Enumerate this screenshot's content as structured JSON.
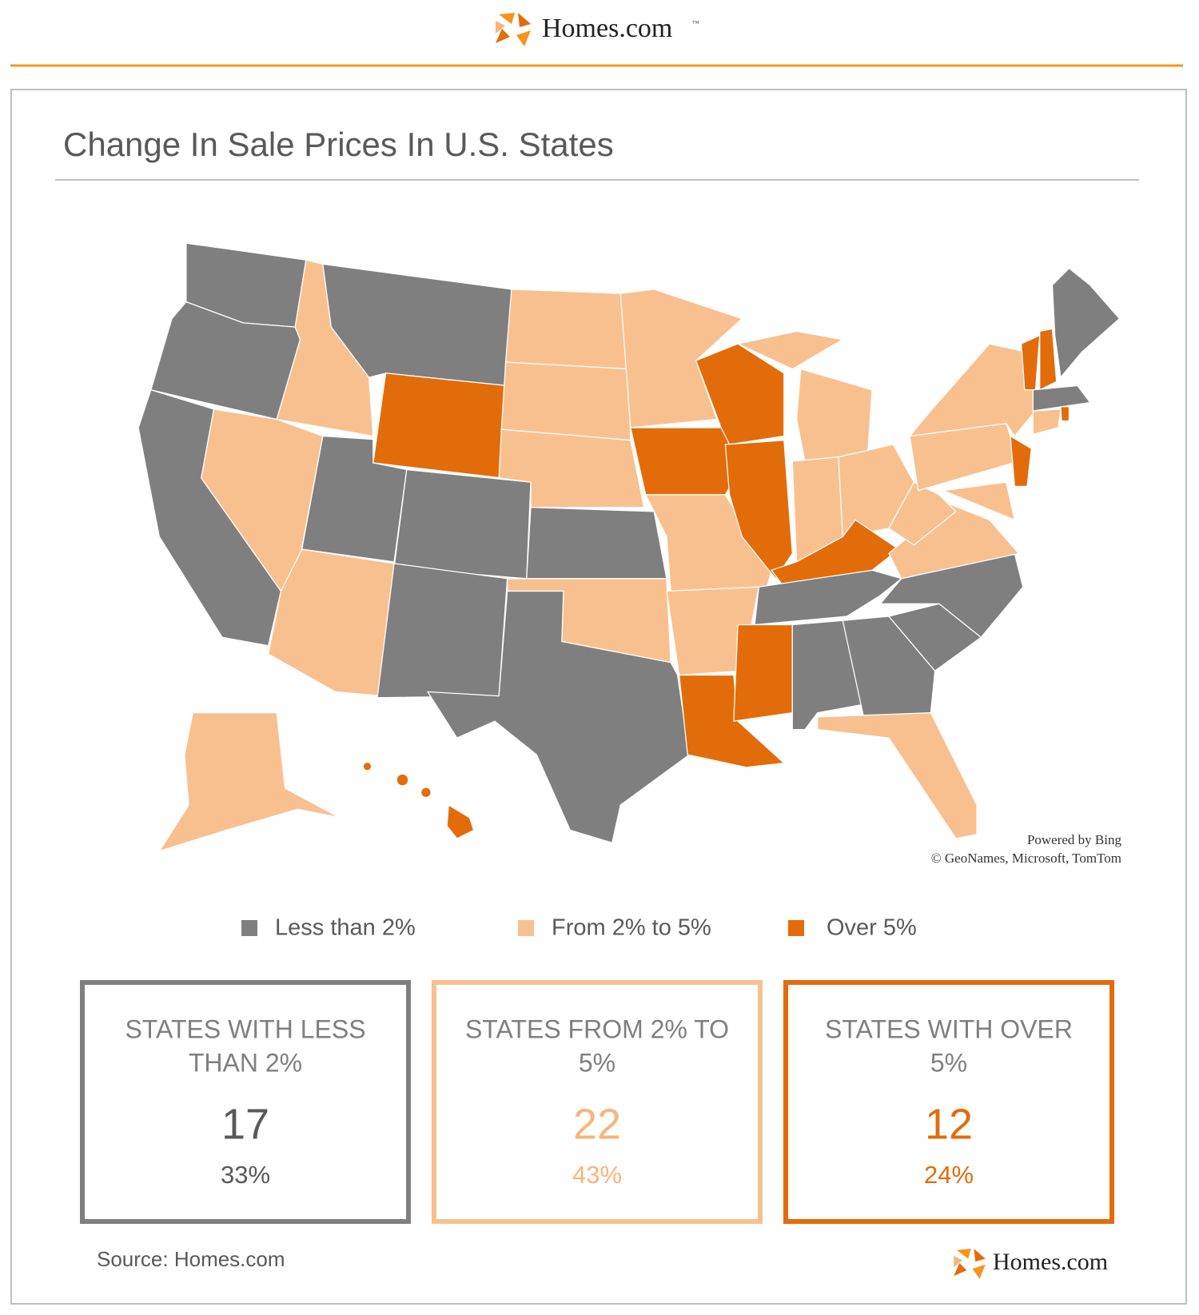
{
  "header": {
    "brand": "Homes.com",
    "tm": "™"
  },
  "title": "Change In Sale Prices In U.S. States",
  "attribution": [
    "Powered by Bing",
    "© GeoNames, Microsoft, TomTom"
  ],
  "legend": [
    {
      "label": "Less than 2%",
      "color": "#7f7f7f"
    },
    {
      "label": "From 2% to 5%",
      "color": "#f9c08f"
    },
    {
      "label": "Over 5%",
      "color": "#e36c0a"
    }
  ],
  "stats": [
    {
      "label": [
        "STATES WITH LESS",
        "THAN 2%"
      ],
      "count": 17,
      "percent": "33%",
      "color": "#7f7f7f",
      "text_color": "#595959"
    },
    {
      "label": [
        "STATES FROM 2% TO",
        "5%"
      ],
      "count": 22,
      "percent": "43%",
      "color": "#f9c08f",
      "text_color": "#f9b47a"
    },
    {
      "label": [
        "STATES WITH OVER",
        "5%"
      ],
      "count": 12,
      "percent": "24%",
      "color": "#e36c0a",
      "text_color": "#e36c0a"
    }
  ],
  "source": "Source: Homes.com",
  "footer": {
    "brand": "Homes.com"
  }
}
